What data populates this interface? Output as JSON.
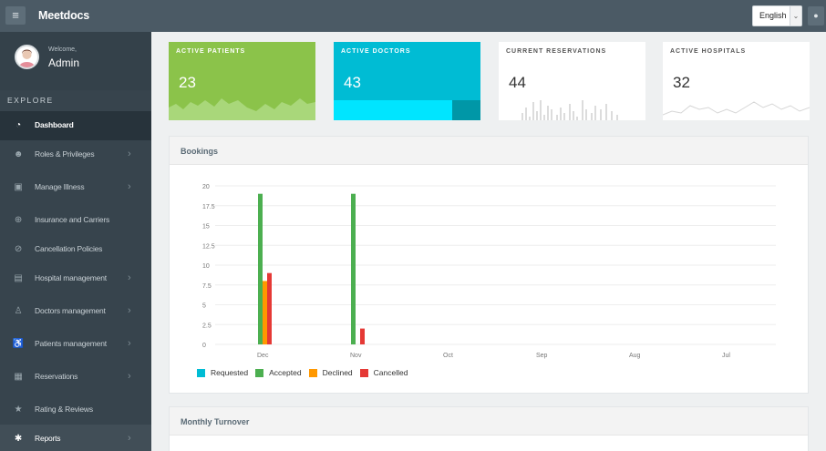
{
  "app": {
    "name": "Meetdocs"
  },
  "header": {
    "language": "English",
    "menu_icon": "hamburger-icon",
    "user_icon": "user-icon"
  },
  "sidebar": {
    "welcome": "Welcome,",
    "user": "Admin",
    "section": "EXPLORE",
    "items": [
      {
        "label": "Dashboard",
        "icon": "dashboard-icon",
        "active": true
      },
      {
        "label": "Roles & Privileges",
        "icon": "users-icon"
      },
      {
        "label": "Manage Illness",
        "icon": "briefcase-icon"
      },
      {
        "label": "Insurance and Carriers",
        "icon": "lifebuoy-icon"
      },
      {
        "label": "Cancellation Policies",
        "icon": "ban-icon"
      },
      {
        "label": "Hospital management",
        "icon": "hospital-icon"
      },
      {
        "label": "Doctors management",
        "icon": "doctor-icon"
      },
      {
        "label": "Patients management",
        "icon": "wheelchair-icon"
      },
      {
        "label": "Reservations",
        "icon": "calendar-icon"
      },
      {
        "label": "Rating & Reviews",
        "icon": "star-icon"
      },
      {
        "label": "Reports",
        "icon": "asterisk-icon"
      }
    ]
  },
  "stats": [
    {
      "title": "ACTIVE PATIENTS",
      "value": "23",
      "color": "#8bc34a"
    },
    {
      "title": "ACTIVE DOCTORS",
      "value": "43",
      "color": "#00bcd4"
    },
    {
      "title": "CURRENT RESERVATIONS",
      "value": "44",
      "color": "#ffffff"
    },
    {
      "title": "ACTIVE HOSPITALS",
      "value": "32",
      "color": "#ffffff"
    }
  ],
  "bookings": {
    "title": "Bookings"
  },
  "turnover": {
    "title": "Monthly Turnover"
  },
  "chart_data": {
    "type": "bar",
    "categories": [
      "Dec",
      "Nov",
      "Oct",
      "Sep",
      "Aug",
      "Jul"
    ],
    "ylim": [
      0,
      20
    ],
    "yticks": [
      "20",
      "17.5",
      "15",
      "12.5",
      "10",
      "7.5",
      "5",
      "2.5",
      "0"
    ],
    "legend_position": "bottom-left",
    "grid": true,
    "series": [
      {
        "name": "Requested",
        "color": "#00bcd4",
        "values": [
          0,
          0,
          0,
          0,
          0,
          0
        ]
      },
      {
        "name": "Accepted",
        "color": "#4caf50",
        "values": [
          19,
          19,
          0,
          0,
          0,
          0
        ]
      },
      {
        "name": "Declined",
        "color": "#ff9800",
        "values": [
          8,
          0,
          0,
          0,
          0,
          0
        ]
      },
      {
        "name": "Cancelled",
        "color": "#e53935",
        "values": [
          9,
          2,
          0,
          0,
          0,
          0
        ]
      }
    ]
  }
}
